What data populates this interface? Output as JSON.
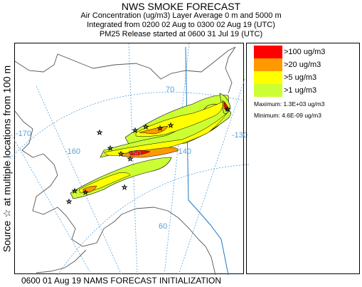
{
  "header": {
    "title": "NWS SMOKE FORECAST",
    "line2": "Air Concentration (ug/m3) Layer Average    0 m and  5000 m",
    "line3": "Integrated from 0200 02 Aug to 0300 02 Aug 19 (UTC)",
    "line4": "PM25 Release started at 0600 31 Jul 19 (UTC)"
  },
  "side_label": "Source ☆ at multiple locations from 100 m",
  "legend": {
    "items": [
      {
        "label": ">100 ug/m3",
        "color": "#ff0000"
      },
      {
        "label": ">20 ug/m3",
        "color": "#ff9900"
      },
      {
        "label": ">5 ug/m3",
        "color": "#ffff00"
      },
      {
        "label": ">1 ug/m3",
        "color": "#ccff33"
      }
    ],
    "maximum": "Maximum: 1.3E+03 ug/m3",
    "minimum": "Minimum: 4.6E-09 ug/m3"
  },
  "map": {
    "grid_labels": {
      "lat70": "70",
      "lat60": "60",
      "lon170": "-170",
      "lon160": "-160",
      "lon150": "-150",
      "lon140": "-140",
      "lon130": "-130"
    },
    "colors": {
      "grid": "#5aa0d6",
      "coast": "#555555",
      "border": "#1f77c4"
    },
    "source_marker": "source-star-icon"
  },
  "footer": "0600 01 Aug 19 NAMS FORECAST INITIALIZATION"
}
